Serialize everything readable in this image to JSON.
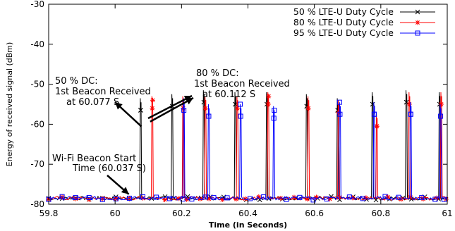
{
  "chart_data": {
    "type": "line",
    "xlabel": "Time (in Seconds)",
    "ylabel": "Energy of received signal (dBm)",
    "xlim": [
      59.8,
      61.0
    ],
    "ylim": [
      -80,
      -30
    ],
    "x_ticks": [
      "59.8",
      "60",
      "60.2",
      "60.4",
      "60.6",
      "60.8",
      "61"
    ],
    "y_ticks": [
      "-30",
      "-40",
      "-50",
      "-60",
      "-70",
      "-80"
    ],
    "grid": false,
    "legend_position": "top-right",
    "noise_floor": -78.5,
    "series": [
      {
        "name": "50 % LTE-U Duty Cycle",
        "color": "#000000",
        "marker": "x",
        "peaks": [
          {
            "x": 60.077,
            "y": -56.5
          },
          {
            "x": 60.172,
            "y": -55.5
          },
          {
            "x": 60.267,
            "y": -54.5
          },
          {
            "x": 60.362,
            "y": -55.0
          },
          {
            "x": 60.457,
            "y": -55.0
          },
          {
            "x": 60.577,
            "y": -55.5
          },
          {
            "x": 60.67,
            "y": -56.5
          },
          {
            "x": 60.775,
            "y": -55.0
          },
          {
            "x": 60.877,
            "y": -54.5
          },
          {
            "x": 60.977,
            "y": -55.0
          }
        ]
      },
      {
        "name": "80 % LTE-U Duty Cycle",
        "color": "#ff0000",
        "marker": "*",
        "peaks": [
          {
            "x": 60.112,
            "y": -56.0
          },
          {
            "x": 60.205,
            "y": -56.0
          },
          {
            "x": 60.272,
            "y": -56.0
          },
          {
            "x": 60.368,
            "y": -56.0
          },
          {
            "x": 60.461,
            "y": -55.0
          },
          {
            "x": 60.582,
            "y": -56.0
          },
          {
            "x": 60.673,
            "y": -57.0
          },
          {
            "x": 60.788,
            "y": -60.5
          },
          {
            "x": 60.886,
            "y": -55.0
          },
          {
            "x": 60.982,
            "y": -55.0
          }
        ]
      },
      {
        "name": "95 % LTE-U Duty Cycle",
        "color": "#0000ff",
        "marker": "square",
        "peaks": [
          {
            "x": 60.207,
            "y": -56.5
          },
          {
            "x": 60.282,
            "y": -58.0
          },
          {
            "x": 60.378,
            "y": -58.0
          },
          {
            "x": 60.478,
            "y": -58.5
          },
          {
            "x": 60.677,
            "y": -57.5
          },
          {
            "x": 60.78,
            "y": -57.5
          },
          {
            "x": 60.89,
            "y": -57.5
          },
          {
            "x": 60.98,
            "y": -58.0
          }
        ]
      }
    ],
    "annotations": [
      {
        "id": "dc50",
        "lines": [
          "50 % DC:",
          "1st Beacon Received",
          "at 60.077 S"
        ],
        "point_x": 60.077,
        "point_y": -59.5
      },
      {
        "id": "dc80",
        "lines": [
          "80 % DC:",
          "1st Beacon Received",
          "at 60.112 S"
        ],
        "point_x": 60.112,
        "point_y": -59.0
      },
      {
        "id": "wifi",
        "lines": [
          "Wi-Fi Beacon Start",
          "Time (60.037 S)"
        ],
        "point_x": 60.037,
        "point_y": -78.2
      }
    ]
  }
}
